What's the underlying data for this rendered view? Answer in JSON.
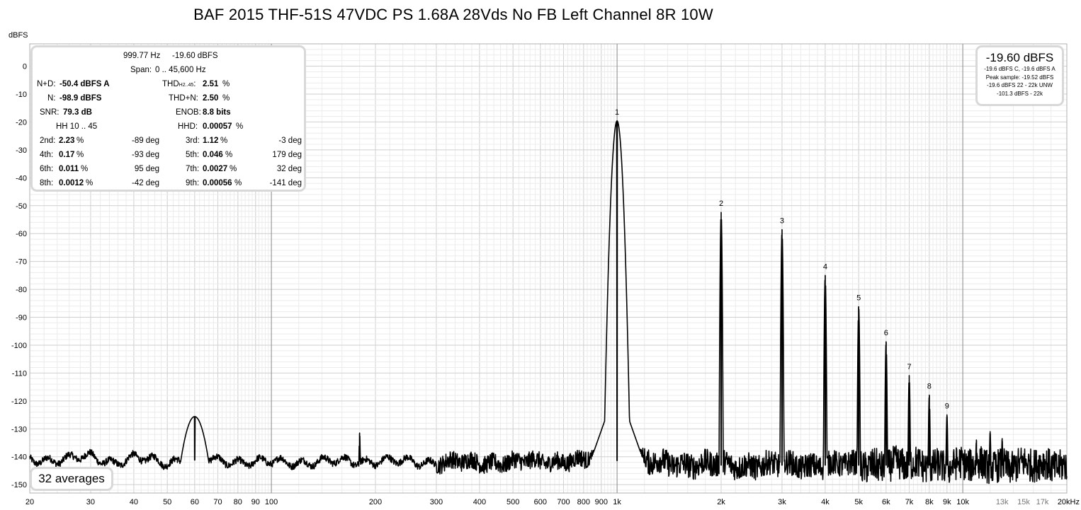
{
  "title": "BAF 2015 THF-51S 47VDC PS 1.68A 28Vds No FB Left Channel 8R 10W",
  "stats": {
    "freq": "999.77 Hz",
    "level": "-19.60 dBFS",
    "span_label": "Span:",
    "span_value": "0 .. 45,600 Hz",
    "nd_label": "N+D:",
    "nd_value": "-50.4 dBFS A",
    "thd_label": "THD",
    "thd_sub": "H2..45",
    "thd_label_end": ":",
    "thd_value": "2.51",
    "thd_unit": "%",
    "n_label": "N:",
    "n_value": "-98.9 dBFS",
    "thdn_label": "THD+N:",
    "thdn_value": "2.50",
    "thdn_unit": "%",
    "snr_label": "SNR:",
    "snr_value": "79.3 dB",
    "enob_label": "ENOB:",
    "enob_value": "8.8 bits",
    "hh_label": "HH 10 .. 45",
    "hhd_label": "HHD:",
    "hhd_value": "0.00057",
    "hhd_unit": "%",
    "harmonics": [
      {
        "left": {
          "label": "2nd:",
          "value": "2.23",
          "unit": "%",
          "phase": "-89 deg"
        },
        "right": {
          "label": "3rd:",
          "value": "1.12",
          "unit": "%",
          "phase": "-3 deg"
        }
      },
      {
        "left": {
          "label": "4th:",
          "value": "0.17",
          "unit": "%",
          "phase": "-93 deg"
        },
        "right": {
          "label": "5th:",
          "value": "0.046",
          "unit": "%",
          "phase": "179 deg"
        }
      },
      {
        "left": {
          "label": "6th:",
          "value": "0.011",
          "unit": "%",
          "phase": "95 deg"
        },
        "right": {
          "label": "7th:",
          "value": "0.0027",
          "unit": "%",
          "phase": "32 deg"
        }
      },
      {
        "left": {
          "label": "8th:",
          "value": "0.0012",
          "unit": "%",
          "phase": "-42 deg"
        },
        "right": {
          "label": "9th:",
          "value": "0.00056",
          "unit": "%",
          "phase": "-141 deg"
        }
      }
    ]
  },
  "level_panel": {
    "main": "-19.60 dBFS",
    "lines": [
      "-19.6 dBFS C, -19.6 dBFS A",
      "Peak sample: -19.52 dBFS",
      "-19.6 dBFS 22 - 22k UNW",
      "-101.3 dBFS - 22k"
    ]
  },
  "averages_label": "32 averages",
  "chart_data": {
    "type": "line",
    "title": "BAF 2015 THF-51S 47VDC PS 1.68A 28Vds No FB Left Channel 8R 10W",
    "ylabel": "dBFS",
    "x_unit_label": "kHz",
    "x_scale": "log",
    "xlim": [
      20,
      20000
    ],
    "ylim": [
      -153,
      8
    ],
    "grid": true,
    "y_ticks": [
      0,
      -10,
      -20,
      -30,
      -40,
      -50,
      -60,
      -70,
      -80,
      -90,
      -100,
      -110,
      -120,
      -130,
      -140,
      -150
    ],
    "x_ticks": [
      {
        "value": 20,
        "label": "20"
      },
      {
        "value": 30,
        "label": "30"
      },
      {
        "value": 40,
        "label": "40"
      },
      {
        "value": 50,
        "label": "50"
      },
      {
        "value": 60,
        "label": "60"
      },
      {
        "value": 70,
        "label": "70"
      },
      {
        "value": 80,
        "label": "80"
      },
      {
        "value": 90,
        "label": "90"
      },
      {
        "value": 100,
        "label": "100"
      },
      {
        "value": 200,
        "label": "200"
      },
      {
        "value": 300,
        "label": "300"
      },
      {
        "value": 400,
        "label": "400"
      },
      {
        "value": 500,
        "label": "500"
      },
      {
        "value": 600,
        "label": "600"
      },
      {
        "value": 700,
        "label": "700"
      },
      {
        "value": 800,
        "label": "800"
      },
      {
        "value": 900,
        "label": "900"
      },
      {
        "value": 1000,
        "label": "1k"
      },
      {
        "value": 2000,
        "label": "2k"
      },
      {
        "value": 3000,
        "label": "3k"
      },
      {
        "value": 4000,
        "label": "4k"
      },
      {
        "value": 5000,
        "label": "5k"
      },
      {
        "value": 6000,
        "label": "6k"
      },
      {
        "value": 7000,
        "label": "7k"
      },
      {
        "value": 8000,
        "label": "8k"
      },
      {
        "value": 9000,
        "label": "9k"
      },
      {
        "value": 10000,
        "label": "10k"
      },
      {
        "value": 13000,
        "label": "13k"
      },
      {
        "value": 15000,
        "label": "15k"
      },
      {
        "value": 17000,
        "label": "17k"
      },
      {
        "value": 20000,
        "label": "20kHz"
      }
    ],
    "harmonic_peaks": [
      {
        "label": "1",
        "x": 1000,
        "y": -19.6
      },
      {
        "label": "2",
        "x": 2000,
        "y": -52.4
      },
      {
        "label": "3",
        "x": 3000,
        "y": -58.6
      },
      {
        "label": "4",
        "x": 4000,
        "y": -75.0
      },
      {
        "label": "5",
        "x": 5000,
        "y": -86.2
      },
      {
        "label": "6",
        "x": 6000,
        "y": -98.8
      },
      {
        "label": "7",
        "x": 7000,
        "y": -110.9
      },
      {
        "label": "8",
        "x": 8000,
        "y": -117.9
      },
      {
        "label": "9",
        "x": 9000,
        "y": -125.0
      }
    ],
    "other_peaks": [
      {
        "x": 60,
        "y": -125.6
      },
      {
        "x": 180,
        "y": -131.5
      },
      {
        "x": 10950,
        "y": -134.0
      },
      {
        "x": 12000,
        "y": -131.0
      },
      {
        "x": 13000,
        "y": -133.5
      }
    ],
    "noise_floor": [
      {
        "x": 20,
        "y": -141
      },
      {
        "x": 25,
        "y": -141
      },
      {
        "x": 30,
        "y": -140
      },
      {
        "x": 35,
        "y": -142
      },
      {
        "x": 40,
        "y": -140.5
      },
      {
        "x": 50,
        "y": -142
      },
      {
        "x": 55,
        "y": -141
      },
      {
        "x": 70,
        "y": -141.5
      },
      {
        "x": 100,
        "y": -142
      },
      {
        "x": 200,
        "y": -141.5
      },
      {
        "x": 300,
        "y": -142
      },
      {
        "x": 500,
        "y": -142
      },
      {
        "x": 900,
        "y": -141
      },
      {
        "x": 1200,
        "y": -142
      },
      {
        "x": 2000,
        "y": -143
      },
      {
        "x": 5000,
        "y": -143
      },
      {
        "x": 10000,
        "y": -143
      },
      {
        "x": 20000,
        "y": -143
      }
    ]
  }
}
